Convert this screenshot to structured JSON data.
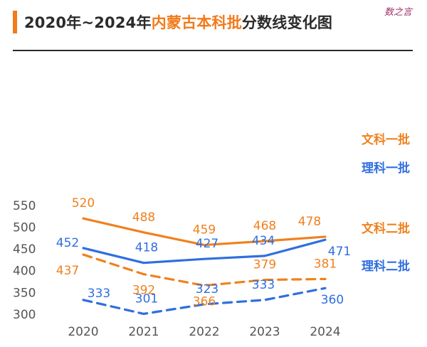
{
  "header": {
    "title_prefix": "2020年~2024年",
    "title_highlight": "内蒙古本科批",
    "title_suffix": "分数线变化图",
    "watermark": "数之言"
  },
  "colors": {
    "orange": "#f0811d",
    "blue": "#2f6fdf",
    "axis_text": "#555555"
  },
  "chart_data": {
    "type": "line",
    "title": "2020年~2024年内蒙古本科批分数线变化图",
    "categories": [
      "2020",
      "2021",
      "2022",
      "2023",
      "2024"
    ],
    "ylim": [
      300,
      550
    ],
    "yticks": [
      300,
      350,
      400,
      450,
      500,
      550
    ],
    "grid": false,
    "series": [
      {
        "name": "文科一批",
        "values": [
          520,
          488,
          459,
          468,
          478
        ],
        "color": "#f0811d",
        "style": "solid"
      },
      {
        "name": "理科一批",
        "values": [
          452,
          418,
          427,
          434,
          471
        ],
        "color": "#2f6fdf",
        "style": "solid"
      },
      {
        "name": "文科二批",
        "values": [
          437,
          392,
          366,
          379,
          381
        ],
        "color": "#f0811d",
        "style": "dashed"
      },
      {
        "name": "理科二批",
        "values": [
          333,
          301,
          323,
          333,
          360
        ],
        "color": "#2f6fdf",
        "style": "dashed"
      }
    ]
  }
}
